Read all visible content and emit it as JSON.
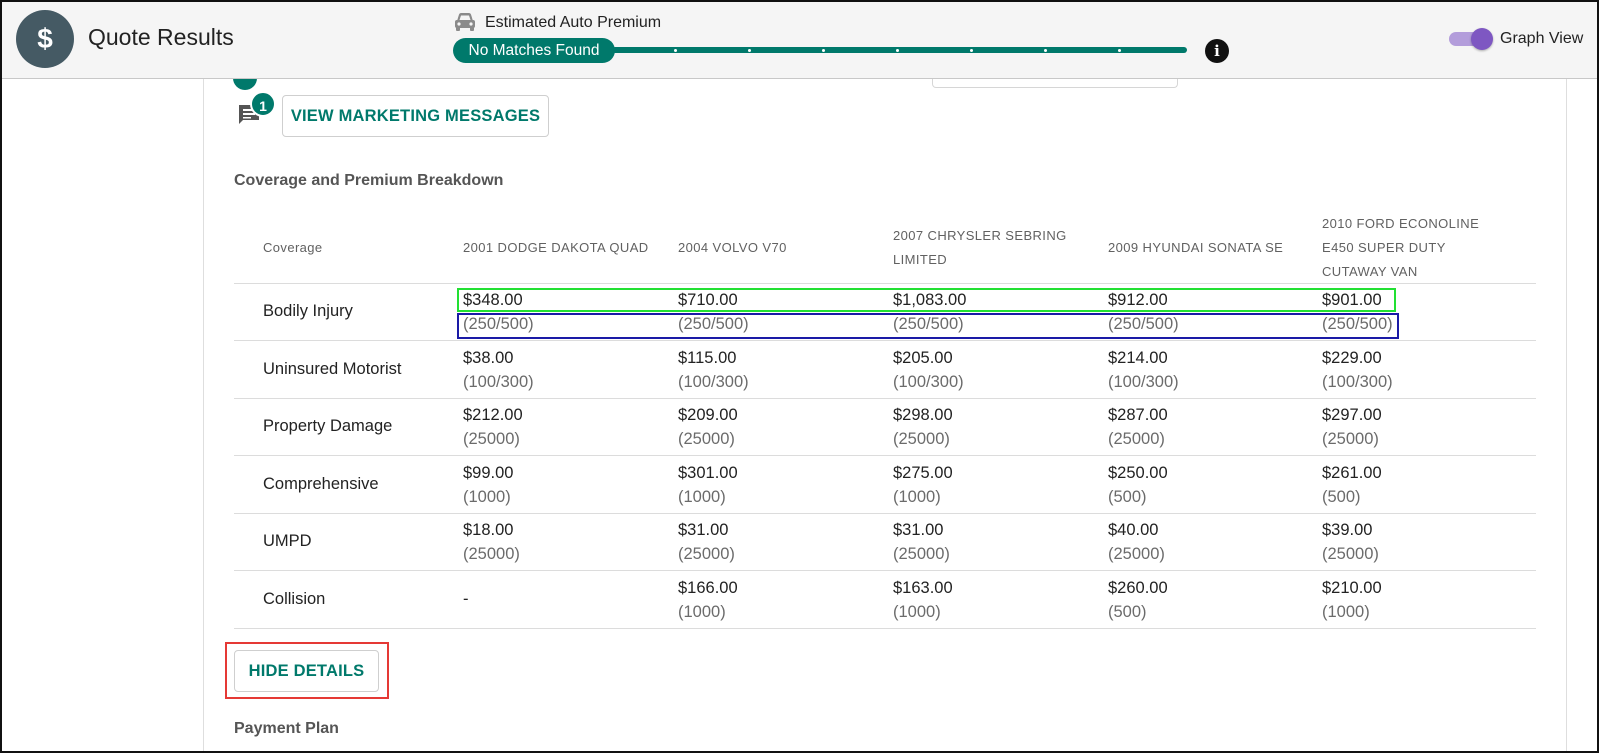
{
  "header": {
    "logo_symbol": "$",
    "title": "Quote Results",
    "premium_label": "Estimated Auto Premium",
    "match_status": "No Matches Found",
    "info_symbol": "i",
    "toggle_label": "Graph View",
    "toggle_on": true,
    "accent_color": "#00796b",
    "toggle_color": "#7e57c2"
  },
  "messages": {
    "badge_count": "1",
    "button_label": "VIEW MARKETING MESSAGES"
  },
  "coverage": {
    "section_title": "Coverage and Premium Breakdown",
    "column_header": "Coverage",
    "vehicles": [
      [
        "2001 DODGE DAKOTA QUAD"
      ],
      [
        "2004 VOLVO V70"
      ],
      [
        "2007 CHRYSLER SEBRING",
        "LIMITED"
      ],
      [
        "2009 HYUNDAI SONATA SE"
      ],
      [
        "2010 FORD ECONOLINE",
        "E450 SUPER DUTY",
        "CUTAWAY VAN"
      ]
    ],
    "rows": [
      {
        "label": "Bodily Injury",
        "cells": [
          {
            "premium": "$348.00",
            "limit": "(250/500)"
          },
          {
            "premium": "$710.00",
            "limit": "(250/500)"
          },
          {
            "premium": "$1,083.00",
            "limit": "(250/500)"
          },
          {
            "premium": "$912.00",
            "limit": "(250/500)"
          },
          {
            "premium": "$901.00",
            "limit": "(250/500)"
          }
        ]
      },
      {
        "label": "Uninsured Motorist",
        "cells": [
          {
            "premium": "$38.00",
            "limit": "(100/300)"
          },
          {
            "premium": "$115.00",
            "limit": "(100/300)"
          },
          {
            "premium": "$205.00",
            "limit": "(100/300)"
          },
          {
            "premium": "$214.00",
            "limit": "(100/300)"
          },
          {
            "premium": "$229.00",
            "limit": "(100/300)"
          }
        ]
      },
      {
        "label": "Property Damage",
        "cells": [
          {
            "premium": "$212.00",
            "limit": "(25000)"
          },
          {
            "premium": "$209.00",
            "limit": "(25000)"
          },
          {
            "premium": "$298.00",
            "limit": "(25000)"
          },
          {
            "premium": "$287.00",
            "limit": "(25000)"
          },
          {
            "premium": "$297.00",
            "limit": "(25000)"
          }
        ]
      },
      {
        "label": "Comprehensive",
        "cells": [
          {
            "premium": "$99.00",
            "limit": "(1000)"
          },
          {
            "premium": "$301.00",
            "limit": "(1000)"
          },
          {
            "premium": "$275.00",
            "limit": "(1000)"
          },
          {
            "premium": "$250.00",
            "limit": "(500)"
          },
          {
            "premium": "$261.00",
            "limit": "(500)"
          }
        ]
      },
      {
        "label": "UMPD",
        "cells": [
          {
            "premium": "$18.00",
            "limit": "(25000)"
          },
          {
            "premium": "$31.00",
            "limit": "(25000)"
          },
          {
            "premium": "$31.00",
            "limit": "(25000)"
          },
          {
            "premium": "$40.00",
            "limit": "(25000)"
          },
          {
            "premium": "$39.00",
            "limit": "(25000)"
          }
        ]
      },
      {
        "label": "Collision",
        "cells": [
          {
            "premium": "-",
            "limit": ""
          },
          {
            "premium": "$166.00",
            "limit": "(1000)"
          },
          {
            "premium": "$163.00",
            "limit": "(1000)"
          },
          {
            "premium": "$260.00",
            "limit": "(500)"
          },
          {
            "premium": "$210.00",
            "limit": "(1000)"
          }
        ]
      }
    ]
  },
  "actions": {
    "hide_details_label": "HIDE DETAILS"
  },
  "payment": {
    "section_title": "Payment Plan"
  }
}
